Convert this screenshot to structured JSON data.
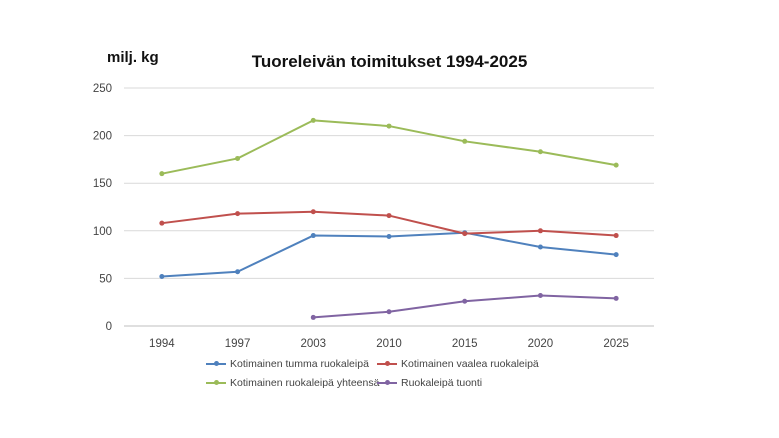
{
  "chart_data": {
    "type": "line",
    "title": "Tuoreleivän toimitukset 1994-2025",
    "ylabel": "milj. kg",
    "xlabel": "",
    "categories": [
      "1994",
      "1997",
      "2003",
      "2010",
      "2015",
      "2020",
      "2025"
    ],
    "ylim": [
      0,
      250
    ],
    "yticks": [
      0,
      50,
      100,
      150,
      200,
      250
    ],
    "grid": true,
    "legend_position": "bottom",
    "series": [
      {
        "name": "Kotimainen tumma ruokaleipä",
        "color": "#4F81BD",
        "values": [
          52,
          57,
          95,
          94,
          98,
          83,
          75
        ]
      },
      {
        "name": "Kotimainen vaalea ruokaleipä",
        "color": "#C0504D",
        "values": [
          108,
          118,
          120,
          116,
          97,
          100,
          95
        ]
      },
      {
        "name": "Kotimainen ruokaleipä yhteensä",
        "color": "#9BBB59",
        "values": [
          160,
          176,
          216,
          210,
          194,
          183,
          169
        ]
      },
      {
        "name": "Ruokaleipä tuonti",
        "color": "#8064A2",
        "values": [
          null,
          null,
          9,
          15,
          26,
          32,
          29
        ]
      }
    ]
  }
}
